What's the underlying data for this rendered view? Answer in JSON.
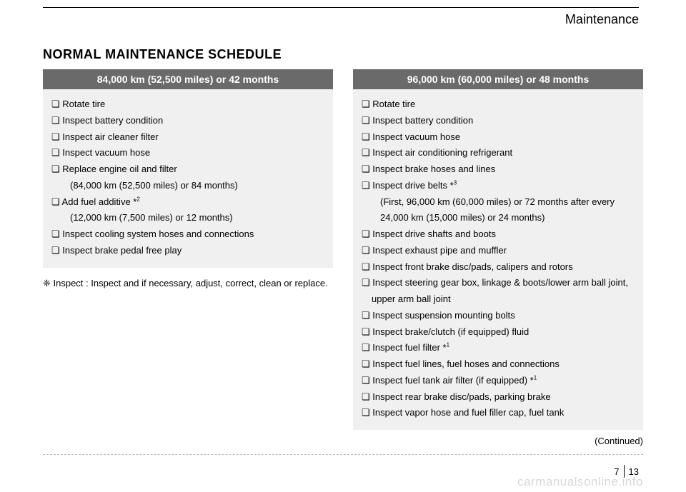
{
  "header": {
    "section": "Maintenance"
  },
  "title": "NORMAL MAINTENANCE SCHEDULE",
  "left": {
    "heading": "84,000 km (52,500 miles) or 42 months",
    "items": [
      {
        "text": "Rotate tire"
      },
      {
        "text": "Inspect battery condition"
      },
      {
        "text": "Inspect air cleaner filter"
      },
      {
        "text": "Inspect vacuum hose"
      },
      {
        "text": "Replace engine oil and filter",
        "sub": "(84,000 km (52,500 miles) or 84 months)"
      },
      {
        "text": "Add fuel additive *",
        "sup": "2",
        "sub": "(12,000 km (7,500 miles) or 12 months)"
      },
      {
        "text": "Inspect cooling system hoses and connections"
      },
      {
        "text": "Inspect brake pedal free play"
      }
    ],
    "note_label": "❈ Inspect :",
    "note_text": "Inspect and if necessary, adjust, correct, clean or replace."
  },
  "right": {
    "heading": "96,000 km (60,000 miles) or 48 months",
    "items": [
      {
        "text": "Rotate tire"
      },
      {
        "text": "Inspect battery condition"
      },
      {
        "text": "Inspect vacuum hose"
      },
      {
        "text": "Inspect air conditioning refrigerant"
      },
      {
        "text": "Inspect brake hoses and lines"
      },
      {
        "text": "Inspect drive belts *",
        "sup": "3",
        "sub": "(First, 96,000 km (60,000 miles) or 72 months after every 24,000 km (15,000 miles) or 24 months)"
      },
      {
        "text": "Inspect drive shafts and boots"
      },
      {
        "text": "Inspect exhaust pipe and muffler"
      },
      {
        "text": "Inspect front brake disc/pads, calipers and rotors"
      },
      {
        "text": "Inspect steering gear box, linkage & boots/lower arm ball joint, upper arm ball joint"
      },
      {
        "text": "Inspect suspension mounting bolts"
      },
      {
        "text": "Inspect brake/clutch (if equipped) fluid"
      },
      {
        "text": "Inspect fuel filter *",
        "sup": "1"
      },
      {
        "text": "Inspect fuel lines, fuel hoses and connections"
      },
      {
        "text": "Inspect fuel tank air filter (if equipped) *",
        "sup": "1"
      },
      {
        "text": "Inspect rear brake disc/pads, parking brake"
      },
      {
        "text": "Inspect vapor hose and fuel filler cap, fuel tank"
      }
    ],
    "continued": "(Continued)"
  },
  "footer": {
    "chapter": "7",
    "page": "13"
  },
  "watermark": "carmanualsonline.info"
}
